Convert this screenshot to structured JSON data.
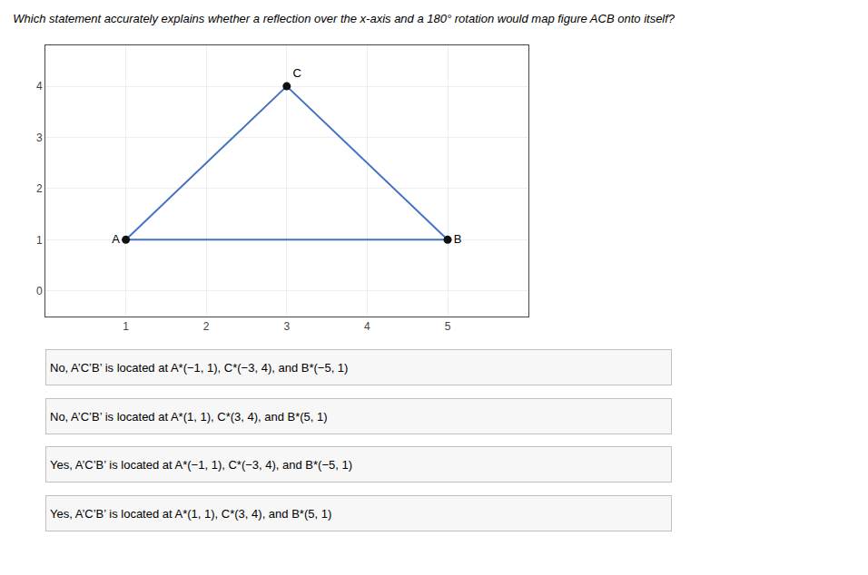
{
  "chart_data": {
    "type": "line",
    "title": "Which statement accurately explains whether a reflection over the x-axis and a 180° rotation would map figure ACB onto itself?",
    "series": [
      {
        "type": "line",
        "color": "#4472C4",
        "x": [
          1,
          3,
          5,
          1
        ],
        "values": [
          1,
          4,
          1,
          1
        ]
      },
      {
        "type": "scatter",
        "color": "#111111",
        "x": [
          1,
          3,
          5
        ],
        "values": [
          1,
          4,
          1
        ],
        "labels": [
          "A",
          "C",
          "B"
        ]
      }
    ],
    "xlim": [
      0,
      6
    ],
    "ylim": [
      -0.5,
      4.8
    ],
    "xticks": [
      1,
      2,
      3,
      4,
      5
    ],
    "yticks": [
      0,
      1,
      2,
      3,
      4
    ],
    "grid": true,
    "annotations": [
      "No, A’C’B’ is located at A*(−1, 1), C*(−3, 4), and B*(−5, 1)",
      "No, A’C’B’ is located at A*(1, 1), C*(3, 4), and B*(5, 1)",
      "Yes, A’C’B’ is located at A*(−1, 1), C*(−3, 4), and B*(−5, 1)",
      "Yes, A’C’B’ is located at A*(1, 1), C*(3, 4), and B*(5, 1)"
    ]
  }
}
